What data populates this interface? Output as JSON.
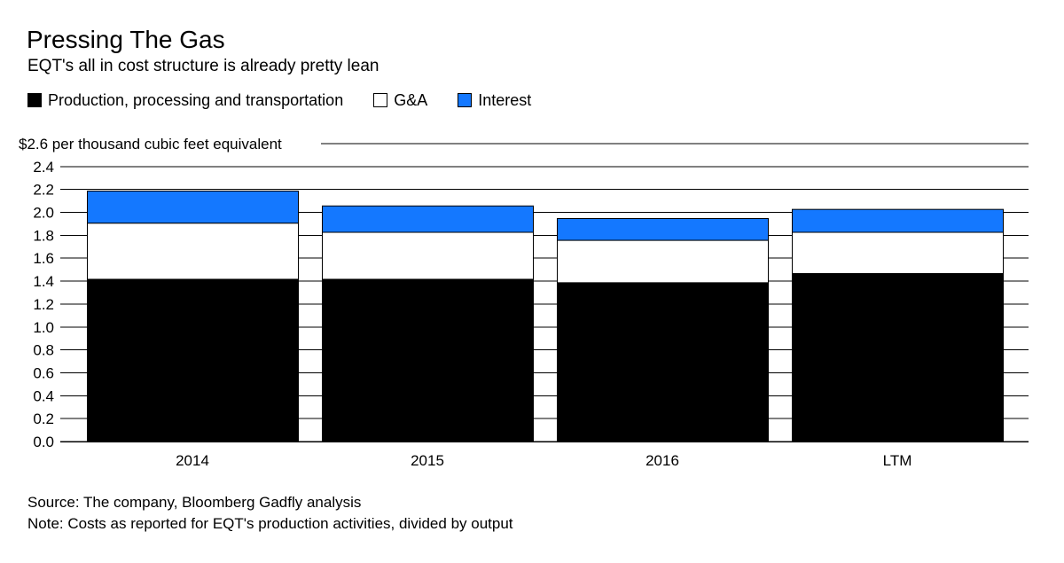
{
  "header": {
    "title": "Pressing The Gas",
    "subtitle": "EQT's all in cost structure is already pretty lean"
  },
  "legend": [
    {
      "label": "Production, processing and transportation",
      "color": "#000000"
    },
    {
      "label": "G&A",
      "color": "#ffffff"
    },
    {
      "label": "Interest",
      "color": "#1478ff"
    }
  ],
  "chart_data": {
    "type": "bar",
    "stacked": true,
    "title": "Pressing The Gas",
    "subtitle": "EQT's all in cost structure is already pretty lean",
    "ylabel": "$2.6 per thousand cubic feet equivalent",
    "ylim": [
      0,
      2.6
    ],
    "yticks": [
      "0.0",
      "0.2",
      "0.4",
      "0.6",
      "0.8",
      "1.0",
      "1.2",
      "1.4",
      "1.6",
      "1.8",
      "2.0",
      "2.2",
      "2.4"
    ],
    "categories": [
      "2014",
      "2015",
      "2016",
      "LTM"
    ],
    "series": [
      {
        "name": "Production, processing and transportation",
        "color": "#000000",
        "values": [
          1.42,
          1.42,
          1.39,
          1.47
        ]
      },
      {
        "name": "G&A",
        "color": "#ffffff",
        "values": [
          0.49,
          0.41,
          0.37,
          0.36
        ]
      },
      {
        "name": "Interest",
        "color": "#1478ff",
        "values": [
          0.28,
          0.23,
          0.19,
          0.2
        ]
      }
    ],
    "grid": true,
    "legend_position": "top-left"
  },
  "footer": {
    "source": "Source: The company, Bloomberg Gadfly analysis",
    "note": "Note: Costs as reported for EQT's production activities, divided by output"
  }
}
